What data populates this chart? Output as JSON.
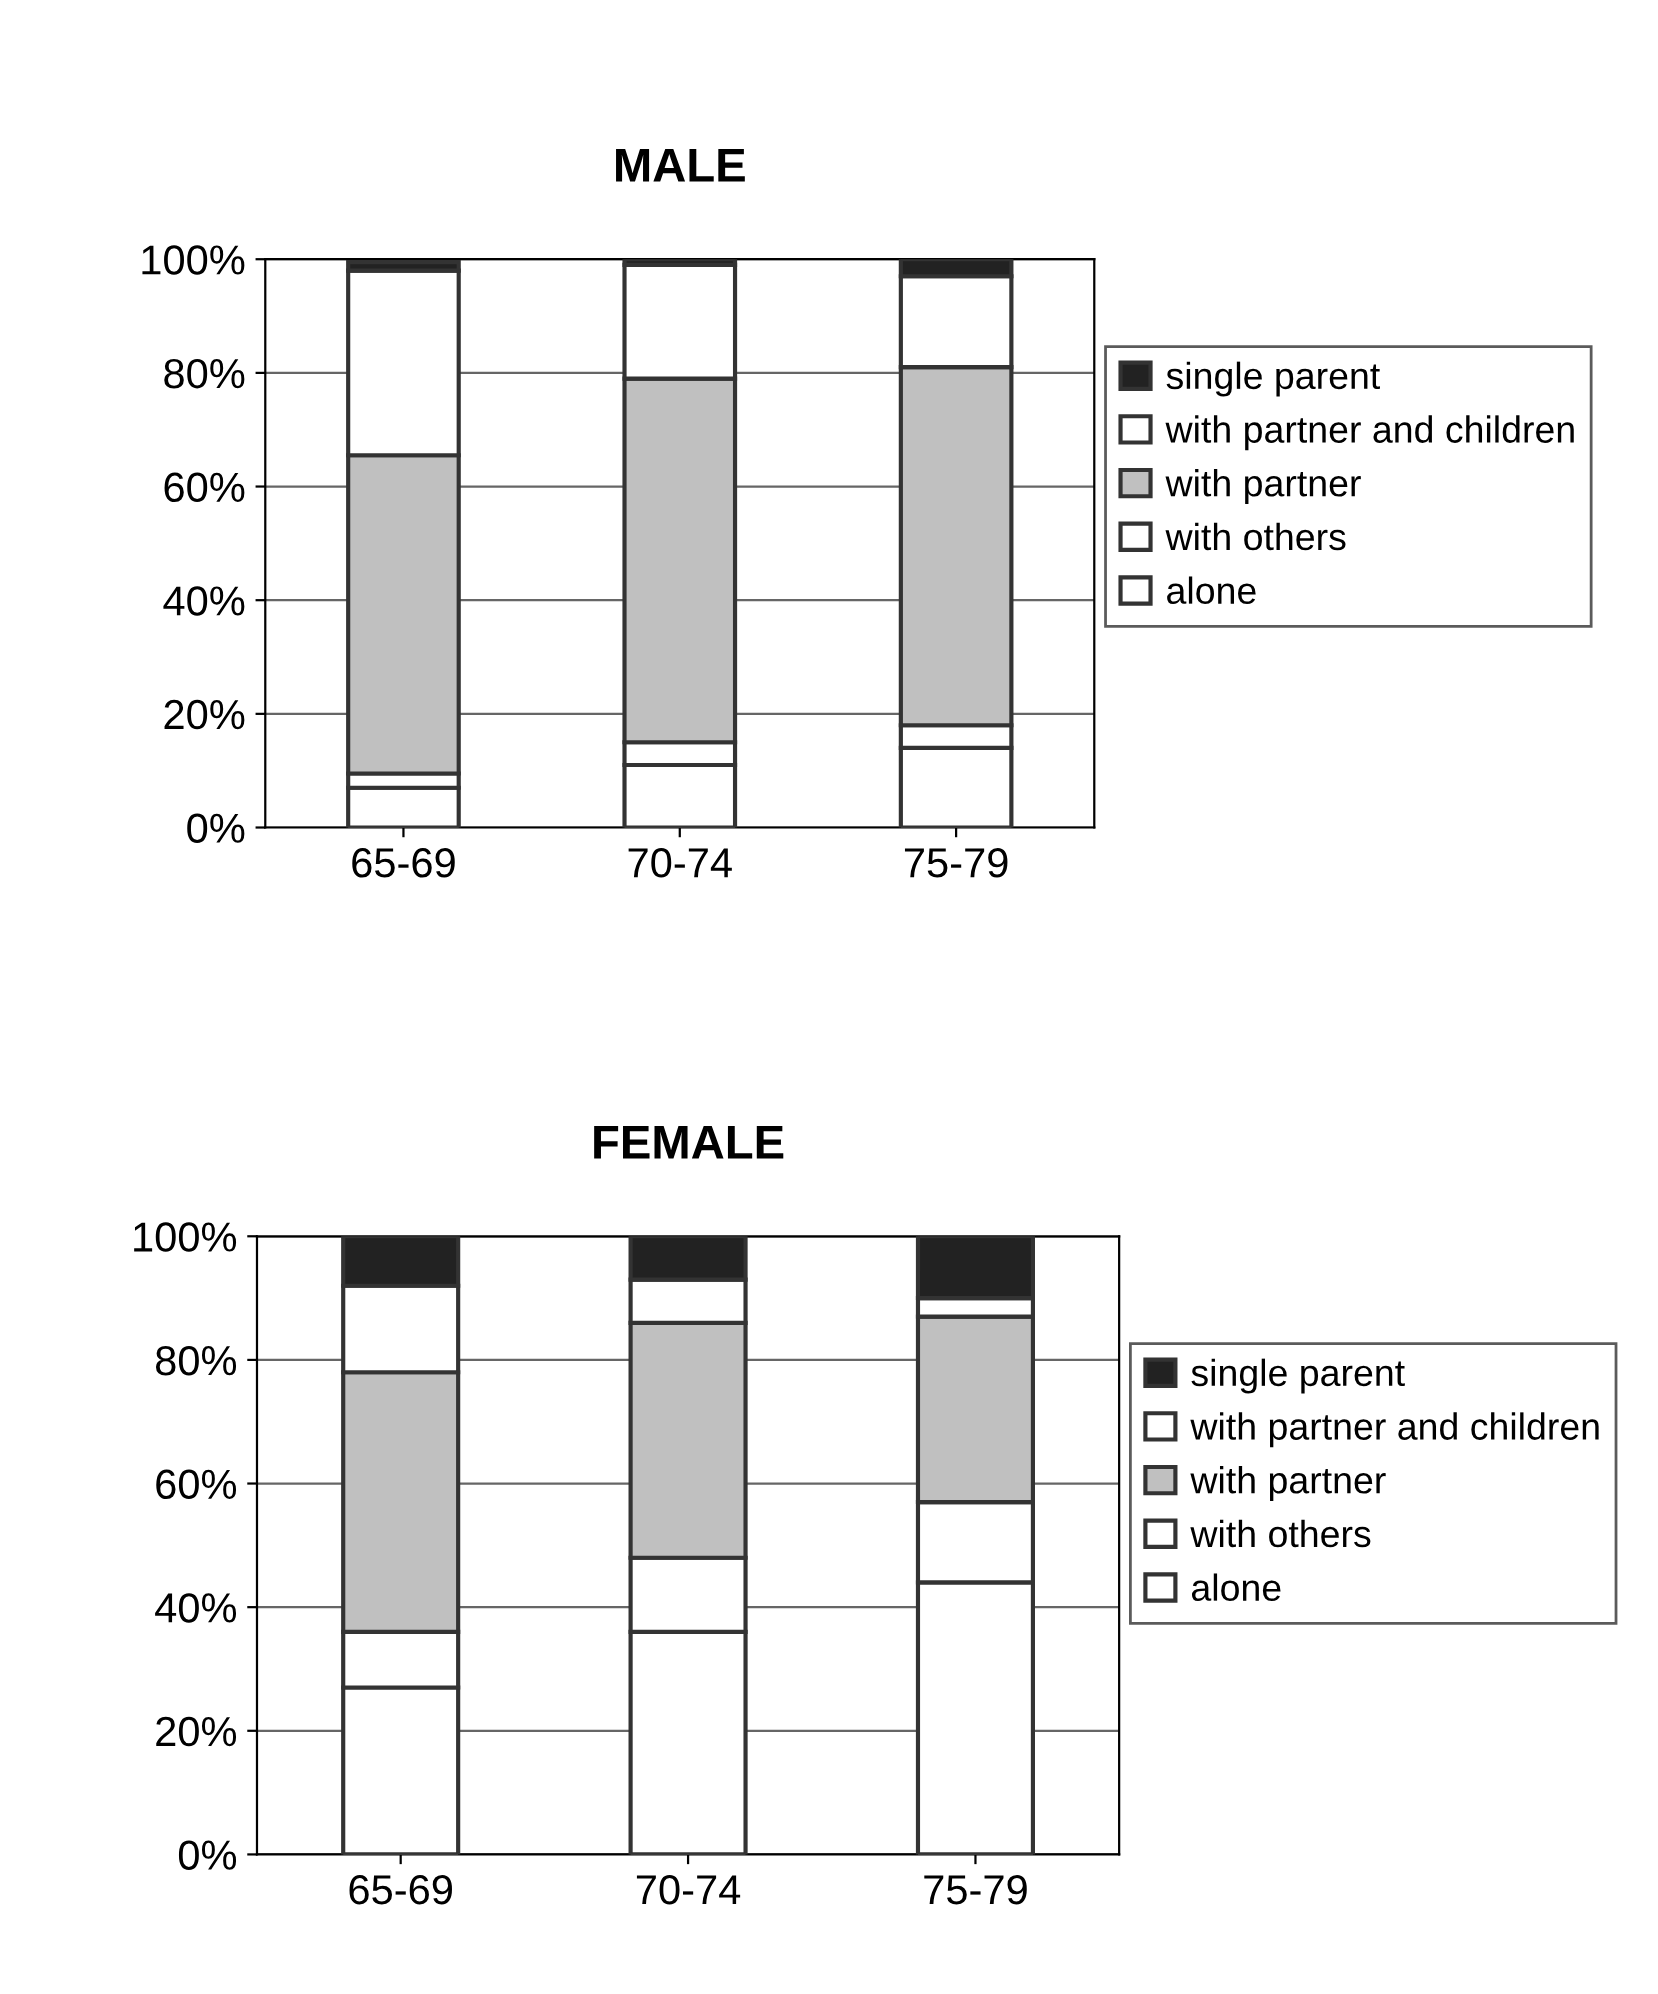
{
  "chart_data": [
    {
      "type": "bar",
      "title": "MALE",
      "stacked": true,
      "categories": [
        "65-69",
        "70-74",
        "75-79"
      ],
      "ylim": [
        0,
        100
      ],
      "yticks": [
        {
          "value": 0,
          "label": "0%"
        },
        {
          "value": 20,
          "label": "20%"
        },
        {
          "value": 40,
          "label": "40%"
        },
        {
          "value": 60,
          "label": "60%"
        },
        {
          "value": 80,
          "label": "80%"
        },
        {
          "value": 100,
          "label": "100%"
        }
      ],
      "grid": "y",
      "legend": "right",
      "series": [
        {
          "name": "alone",
          "color": "#ffffff",
          "values": [
            7,
            11,
            14
          ]
        },
        {
          "name": "with others",
          "color": "#ffffff",
          "values": [
            2.5,
            4,
            4
          ]
        },
        {
          "name": "with partner",
          "color": "#c0c0c0",
          "values": [
            56,
            64,
            63
          ]
        },
        {
          "name": "with partner and children",
          "color": "#ffffff",
          "values": [
            32.5,
            20,
            16
          ]
        },
        {
          "name": "single parent",
          "color": "#222222",
          "values": [
            1.5,
            1,
            3
          ]
        }
      ]
    },
    {
      "type": "bar",
      "title": "FEMALE",
      "stacked": true,
      "categories": [
        "65-69",
        "70-74",
        "75-79"
      ],
      "ylim": [
        0,
        100
      ],
      "yticks": [
        {
          "value": 0,
          "label": "0%"
        },
        {
          "value": 20,
          "label": "20%"
        },
        {
          "value": 40,
          "label": "40%"
        },
        {
          "value": 60,
          "label": "60%"
        },
        {
          "value": 80,
          "label": "80%"
        },
        {
          "value": 100,
          "label": "100%"
        }
      ],
      "grid": "y",
      "legend": "right",
      "series": [
        {
          "name": "alone",
          "color": "#ffffff",
          "values": [
            27,
            36,
            44
          ]
        },
        {
          "name": "with others",
          "color": "#ffffff",
          "values": [
            9,
            12,
            13
          ]
        },
        {
          "name": "with partner",
          "color": "#c0c0c0",
          "values": [
            42,
            38,
            30
          ]
        },
        {
          "name": "with partner and children",
          "color": "#ffffff",
          "values": [
            14,
            7,
            3
          ]
        },
        {
          "name": "single parent",
          "color": "#222222",
          "values": [
            8,
            7,
            10
          ]
        }
      ]
    }
  ]
}
